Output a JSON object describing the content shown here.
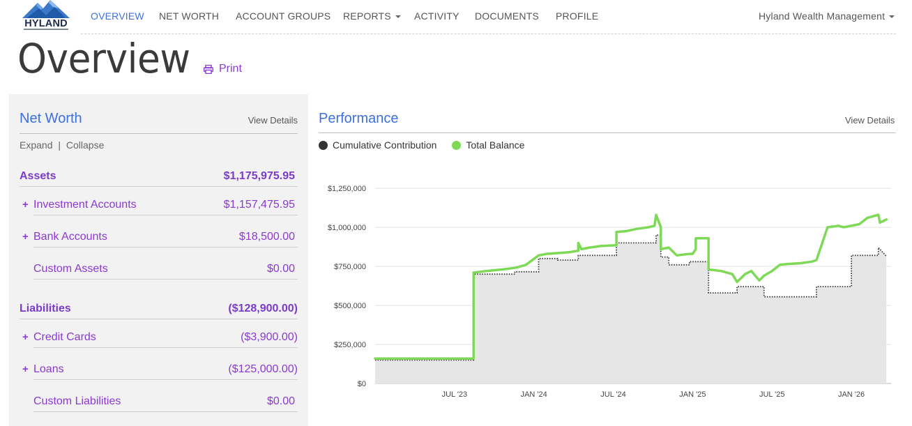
{
  "brand": {
    "name": "HYLAND"
  },
  "nav": {
    "items": [
      {
        "label": "OVERVIEW",
        "active": true
      },
      {
        "label": "NET WORTH"
      },
      {
        "label": "ACCOUNT GROUPS"
      },
      {
        "label": "REPORTS"
      },
      {
        "label": "ACTIVITY"
      },
      {
        "label": "DOCUMENTS"
      },
      {
        "label": "PROFILE"
      }
    ],
    "account_menu": "Hyland Wealth Management"
  },
  "page": {
    "title": "Overview",
    "print_label": "Print"
  },
  "net_worth": {
    "title": "Net Worth",
    "view_details": "View Details",
    "expand": "Expand",
    "separator": "|",
    "collapse": "Collapse",
    "assets": {
      "label": "Assets",
      "value": "$1,175,975.95",
      "items": [
        {
          "label": "Investment Accounts",
          "value": "$1,157,475.95",
          "expandable": true
        },
        {
          "label": "Bank Accounts",
          "value": "$18,500.00",
          "expandable": true
        },
        {
          "label": "Custom Assets",
          "value": "$0.00",
          "expandable": false
        }
      ]
    },
    "liabilities": {
      "label": "Liabilities",
      "value": "($128,900.00)",
      "items": [
        {
          "label": "Credit Cards",
          "value": "($3,900.00)",
          "expandable": true
        },
        {
          "label": "Loans",
          "value": "($125,000.00)",
          "expandable": true
        },
        {
          "label": "Custom Liabilities",
          "value": "$0.00",
          "expandable": false
        }
      ]
    },
    "plus_symbol": "+"
  },
  "performance": {
    "title": "Performance",
    "view_details": "View Details"
  },
  "colors": {
    "accent": "#3c6fe0",
    "purple": "#8a3ad0",
    "balance": "#7ed957",
    "contribution": "#333333",
    "area": "#e6e6e6"
  },
  "chart_data": {
    "type": "line",
    "title": "Performance",
    "xlabel": "",
    "ylabel": "",
    "ylim": [
      0,
      1250000
    ],
    "y_ticks": [
      0,
      250000,
      500000,
      750000,
      1000000,
      1250000
    ],
    "y_tick_labels": [
      "$0",
      "$250,000",
      "$500,000",
      "$750,000",
      "$1,000,000",
      "$1,250,000"
    ],
    "x_range": [
      2023.0,
      2026.25
    ],
    "x_ticks": [
      2023.5,
      2024.0,
      2024.5,
      2025.0,
      2025.5,
      2026.0
    ],
    "x_tick_labels": [
      "JUL '23",
      "JAN '24",
      "JUL '24",
      "JAN '25",
      "JUL '25",
      "JAN '26"
    ],
    "legend": [
      "Cumulative Contribution",
      "Total Balance"
    ],
    "series": [
      {
        "name": "Cumulative Contribution",
        "style": "dotted",
        "x": [
          2023.0,
          2023.62,
          2023.62,
          2023.88,
          2023.88,
          2024.03,
          2024.03,
          2024.15,
          2024.15,
          2024.28,
          2024.28,
          2024.52,
          2024.52,
          2024.77,
          2024.77,
          2024.8,
          2024.8,
          2024.85,
          2024.85,
          2024.98,
          2024.98,
          2025.1,
          2025.1,
          2025.28,
          2025.28,
          2025.45,
          2025.45,
          2025.78,
          2025.78,
          2026.0,
          2026.0,
          2026.17,
          2026.17,
          2026.22
        ],
        "y": [
          150000,
          150000,
          700000,
          700000,
          715000,
          715000,
          800000,
          800000,
          790000,
          790000,
          820000,
          820000,
          900000,
          900000,
          950000,
          950000,
          810000,
          810000,
          760000,
          760000,
          780000,
          780000,
          580000,
          580000,
          620000,
          620000,
          555000,
          555000,
          620000,
          620000,
          820000,
          820000,
          870000,
          815000
        ]
      },
      {
        "name": "Total Balance",
        "style": "solid",
        "x": [
          2023.0,
          2023.62,
          2023.62,
          2023.7,
          2023.8,
          2023.88,
          2023.9,
          2023.95,
          2024.03,
          2024.08,
          2024.15,
          2024.22,
          2024.28,
          2024.28,
          2024.3,
          2024.35,
          2024.42,
          2024.52,
          2024.52,
          2024.58,
          2024.65,
          2024.72,
          2024.76,
          2024.77,
          2024.8,
          2024.8,
          2024.85,
          2024.9,
          2024.98,
          2025.0,
          2025.02,
          2025.02,
          2025.1,
          2025.1,
          2025.18,
          2025.25,
          2025.28,
          2025.33,
          2025.37,
          2025.42,
          2025.45,
          2025.5,
          2025.55,
          2025.6,
          2025.68,
          2025.75,
          2025.78,
          2025.85,
          2025.92,
          2025.95,
          2026.0,
          2026.05,
          2026.1,
          2026.17,
          2026.18,
          2026.22
        ],
        "y": [
          160000,
          160000,
          710000,
          720000,
          730000,
          740000,
          745000,
          760000,
          820000,
          830000,
          835000,
          840000,
          850000,
          900000,
          860000,
          870000,
          880000,
          885000,
          970000,
          975000,
          990000,
          1000000,
          1010000,
          1080000,
          1000000,
          860000,
          870000,
          820000,
          830000,
          830000,
          860000,
          930000,
          930000,
          730000,
          720000,
          700000,
          650000,
          700000,
          720000,
          660000,
          690000,
          720000,
          760000,
          765000,
          770000,
          780000,
          790000,
          1000000,
          1010000,
          1000000,
          1010000,
          1020000,
          1060000,
          1080000,
          1030000,
          1050000
        ]
      }
    ]
  }
}
